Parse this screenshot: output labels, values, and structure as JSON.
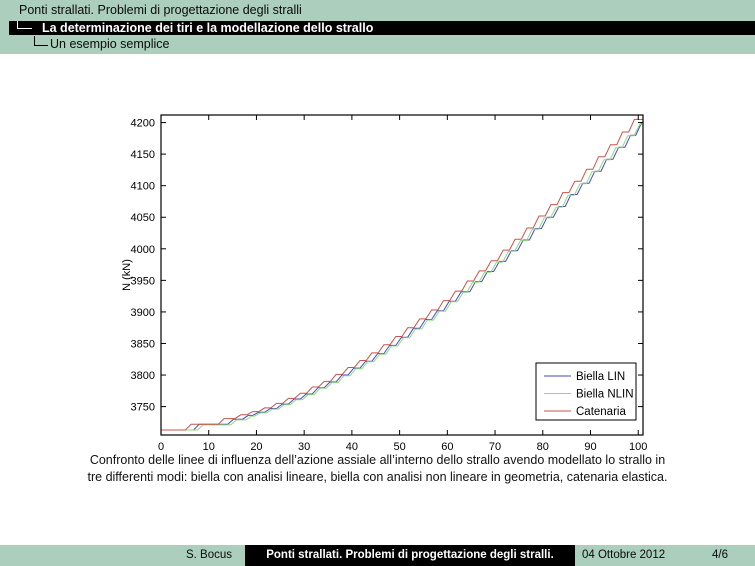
{
  "header": {
    "level1": "Ponti strallati. Problemi di progettazione degli stralli",
    "level2": "La determinazione dei tiri e la modellazione dello strallo",
    "level3": "Un esempio semplice"
  },
  "chart_data": {
    "type": "line",
    "title": "",
    "xlabel": "",
    "ylabel": "N (kN)",
    "xlim": [
      0,
      101
    ],
    "ylim": [
      3705,
      4212
    ],
    "x_ticks": [
      0,
      10,
      20,
      30,
      40,
      50,
      60,
      70,
      80,
      90,
      100
    ],
    "y_ticks": [
      3750,
      3800,
      3850,
      3900,
      3950,
      4000,
      4050,
      4100,
      4150,
      4200
    ],
    "grid": false,
    "legend_position": "lower right",
    "step_rendering": true,
    "riser": 1.2,
    "series": [
      {
        "name": "Biella LIN",
        "color": "#4a4ab8",
        "x": [
          0,
          8,
          15.2,
          18.3,
          20.4,
          22.9,
          25.4,
          27.9,
          30.4,
          32.9,
          35.4,
          37.9,
          40.4,
          42.9,
          45.4,
          47.9,
          50.4,
          52.9,
          55.4,
          57.9,
          60.4,
          62.9,
          65.9,
          68.4,
          70.9,
          73.4,
          75.9,
          78.4,
          80.9,
          83.4,
          85.9,
          88.4,
          90.9,
          93.4,
          95.9,
          98.4,
          100.7
        ],
        "y": [
          3713,
          3722,
          3730,
          3736,
          3741,
          3747,
          3754,
          3762,
          3770,
          3780,
          3789,
          3800,
          3811,
          3822,
          3834,
          3847,
          3860,
          3874,
          3888,
          3902,
          3917,
          3932,
          3948,
          3964,
          3980,
          3997,
          4014,
          4032,
          4050,
          4067,
          4086,
          4104,
          4123,
          4142,
          4161,
          4180,
          4200
        ]
      },
      {
        "name": "Biella NLIN",
        "color": "#8fd97f",
        "x": [
          0,
          8.8,
          15.8,
          19,
          20.8,
          23.3,
          25.8,
          28.3,
          30.8,
          33.3,
          35.8,
          38.3,
          40.8,
          43.3,
          45.8,
          48.3,
          50.8,
          53.3,
          55.8,
          58.3,
          60.8,
          63.3,
          65.3,
          67.8,
          70.3,
          72.8,
          75.3,
          77.8,
          80.3,
          82.8,
          85.3,
          87.8,
          90.3,
          92.8,
          95.3,
          97.8,
          100.3
        ],
        "y": [
          3713,
          3721,
          3729,
          3735,
          3740,
          3746,
          3753,
          3761,
          3769,
          3779,
          3788,
          3799,
          3810,
          3821,
          3833,
          3846,
          3859,
          3873,
          3887,
          3901,
          3916,
          3931,
          3947,
          3963,
          3979,
          3996,
          4013,
          4031,
          4049,
          4066,
          4085,
          4103,
          4122,
          4141,
          4160,
          4179,
          4197
        ]
      },
      {
        "name": "Catenaria",
        "color": "#c4544e",
        "x": [
          0,
          6.3,
          13.2,
          16.7,
          19.2,
          21.7,
          24.2,
          26.7,
          29.2,
          31.7,
          34.2,
          36.7,
          39.2,
          41.7,
          44.2,
          46.7,
          49.2,
          51.7,
          54.2,
          56.7,
          59.2,
          61.7,
          64.2,
          66.7,
          69.2,
          71.7,
          74.2,
          76.7,
          79.2,
          81.7,
          84.2,
          86.7,
          89.2,
          91.7,
          94.2,
          96.7,
          99.2
        ],
        "y": [
          3713,
          3722,
          3731,
          3737,
          3742,
          3748,
          3755,
          3763,
          3771,
          3781,
          3790,
          3801,
          3812,
          3823,
          3835,
          3848,
          3861,
          3875,
          3889,
          3903,
          3918,
          3933,
          3949,
          3965,
          3981,
          3998,
          4015,
          4033,
          4052,
          4070,
          4089,
          4107,
          4126,
          4146,
          4165,
          4185,
          4205
        ]
      }
    ]
  },
  "caption": {
    "line1": "Confronto delle linee di influenza dell’azione assiale all’interno dello strallo avendo modellato lo strallo in",
    "line2": "tre differenti modi: biella con analisi lineare, biella con analisi non lineare in geometria, catenaria elastica."
  },
  "footer": {
    "author": "S. Bocus",
    "title": "Ponti strallati. Problemi di progettazione degli stralli.",
    "date": "04 Ottobre 2012",
    "page": "4/6"
  },
  "colors": {
    "header_green": "#abcfbc",
    "bar_black": "#000000",
    "series_blue": "#4a4ab8",
    "series_green": "#8fd97f",
    "series_red": "#c4544e"
  }
}
